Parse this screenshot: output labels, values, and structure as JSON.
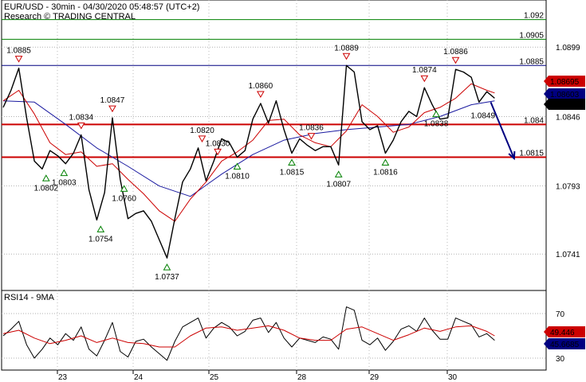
{
  "header": {
    "line1": "EUR/USD - 30min - 04/30/2020 05:48:57 (UTC+2)",
    "line2": "Research © TRADING CENTRAL"
  },
  "colors": {
    "price": "#000000",
    "ma_fast": "#cc0000",
    "ma_slow": "#1a1aa0",
    "resistance_green": "#008000",
    "pivot_blue": "#000080",
    "support_red": "#cc0000",
    "arrow": "#000080",
    "triangle_up": "#008000",
    "triangle_down": "#cc0000"
  },
  "chart_data": [
    {
      "type": "line",
      "panel": "price",
      "y_ticks": [
        "1.0899",
        "1.0846",
        "1.0793",
        "1.0741"
      ],
      "x_ticks": [
        "23",
        "24",
        "25",
        "28",
        "29",
        "30"
      ],
      "levels": [
        {
          "value": 1.092,
          "label": "1.092",
          "color": "green"
        },
        {
          "value": 1.0905,
          "label": "1.0905",
          "color": "green"
        },
        {
          "value": 1.0885,
          "label": "1.0885",
          "color": "blue"
        },
        {
          "value": 1.084,
          "label": "1.084",
          "color": "red"
        },
        {
          "value": 1.0815,
          "label": "1.0815",
          "color": "red"
        }
      ],
      "last_values": [
        {
          "label": "1.08695",
          "color": "red"
        },
        {
          "label": "1.08603",
          "color": "blue"
        },
        {
          "label": "1.086",
          "color": "black"
        }
      ],
      "highs": [
        {
          "t": 2,
          "label": "1.0885"
        },
        {
          "t": 10,
          "label": "1.0834"
        },
        {
          "t": 14,
          "label": "1.0847"
        },
        {
          "t": 25.5,
          "label": "1.0820"
        },
        {
          "t": 27.5,
          "label": "1.0830"
        },
        {
          "t": 33,
          "label": "1.0860"
        },
        {
          "t": 39.5,
          "label": "1.0836"
        },
        {
          "t": 44,
          "label": "1.0889"
        },
        {
          "t": 54,
          "label": "1.0874"
        },
        {
          "t": 58,
          "label": "1.0886"
        }
      ],
      "lows": [
        {
          "t": 5.5,
          "label": "1.0802"
        },
        {
          "t": 7.8,
          "label": "1.0803"
        },
        {
          "t": 12.5,
          "label": "1.0754"
        },
        {
          "t": 15.5,
          "label": "1.0760"
        },
        {
          "t": 21,
          "label": "1.0737"
        },
        {
          "t": 30,
          "label": "1.0810"
        },
        {
          "t": 37,
          "label": "1.0815"
        },
        {
          "t": 43,
          "label": "1.0807"
        },
        {
          "t": 49,
          "label": "1.0816"
        },
        {
          "t": 55.5,
          "label": "1.0838"
        }
      ],
      "last_label": {
        "t": 61.5,
        "label": "1.0849"
      },
      "price": [
        [
          0,
          1.0853
        ],
        [
          1,
          1.0866
        ],
        [
          2,
          1.0883
        ],
        [
          3,
          1.0845
        ],
        [
          4,
          1.0812
        ],
        [
          5,
          1.0806
        ],
        [
          6,
          1.082
        ],
        [
          7,
          1.0816
        ],
        [
          8,
          1.081
        ],
        [
          9,
          1.0818
        ],
        [
          10,
          1.0832
        ],
        [
          11,
          1.079
        ],
        [
          12,
          1.0767
        ],
        [
          13,
          1.0788
        ],
        [
          14,
          1.0845
        ],
        [
          15,
          1.0798
        ],
        [
          16,
          1.0768
        ],
        [
          17,
          1.0772
        ],
        [
          18,
          1.0774
        ],
        [
          19,
          1.0766
        ],
        [
          20,
          1.0752
        ],
        [
          21,
          1.0738
        ],
        [
          22,
          1.0768
        ],
        [
          23,
          1.0796
        ],
        [
          24,
          1.0806
        ],
        [
          25,
          1.0822
        ],
        [
          26,
          1.0797
        ],
        [
          27,
          1.0812
        ],
        [
          28,
          1.0829
        ],
        [
          29,
          1.0826
        ],
        [
          30,
          1.0815
        ],
        [
          31,
          1.082
        ],
        [
          32,
          1.0844
        ],
        [
          33,
          1.0856
        ],
        [
          34,
          1.0841
        ],
        [
          35,
          1.0858
        ],
        [
          36,
          1.0836
        ],
        [
          37,
          1.0818
        ],
        [
          38,
          1.0829
        ],
        [
          39,
          1.0824
        ],
        [
          40,
          1.082
        ],
        [
          41,
          1.0823
        ],
        [
          42,
          1.0823
        ],
        [
          43,
          1.0809
        ],
        [
          44,
          1.0885
        ],
        [
          45,
          1.088
        ],
        [
          46,
          1.0842
        ],
        [
          47,
          1.0836
        ],
        [
          48,
          1.0839
        ],
        [
          49,
          1.0818
        ],
        [
          50,
          1.0828
        ],
        [
          51,
          1.0842
        ],
        [
          52,
          1.085
        ],
        [
          53,
          1.0846
        ],
        [
          54,
          1.0868
        ],
        [
          55,
          1.0855
        ],
        [
          56,
          1.0844
        ],
        [
          57,
          1.0845
        ],
        [
          58,
          1.0882
        ],
        [
          59,
          1.088
        ],
        [
          60,
          1.0876
        ],
        [
          61,
          1.0857
        ],
        [
          62,
          1.0865
        ],
        [
          63,
          1.086
        ]
      ],
      "ma_fast": [
        [
          0,
          1.0858
        ],
        [
          2,
          1.0866
        ],
        [
          4,
          1.0848
        ],
        [
          6,
          1.0826
        ],
        [
          8,
          1.0817
        ],
        [
          10,
          1.0819
        ],
        [
          12,
          1.0808
        ],
        [
          14,
          1.081
        ],
        [
          16,
          1.0798
        ],
        [
          18,
          1.0787
        ],
        [
          20,
          1.0774
        ],
        [
          22,
          1.0766
        ],
        [
          24,
          1.0783
        ],
        [
          26,
          1.0796
        ],
        [
          28,
          1.0812
        ],
        [
          30,
          1.0819
        ],
        [
          32,
          1.0828
        ],
        [
          34,
          1.0843
        ],
        [
          36,
          1.0844
        ],
        [
          38,
          1.0832
        ],
        [
          40,
          1.0826
        ],
        [
          42,
          1.0823
        ],
        [
          44,
          1.0835
        ],
        [
          46,
          1.0855
        ],
        [
          48,
          1.0846
        ],
        [
          50,
          1.0834
        ],
        [
          52,
          1.0838
        ],
        [
          54,
          1.0849
        ],
        [
          56,
          1.0853
        ],
        [
          58,
          1.086
        ],
        [
          60,
          1.0871
        ],
        [
          62,
          1.0866
        ],
        [
          63,
          1.0864
        ]
      ],
      "ma_slow": [
        [
          0,
          1.0858
        ],
        [
          4,
          1.0857
        ],
        [
          8,
          1.084
        ],
        [
          12,
          1.0822
        ],
        [
          16,
          1.0808
        ],
        [
          20,
          1.0793
        ],
        [
          24,
          1.0785
        ],
        [
          28,
          1.0802
        ],
        [
          32,
          1.0817
        ],
        [
          36,
          1.0828
        ],
        [
          40,
          1.0833
        ],
        [
          44,
          1.0836
        ],
        [
          48,
          1.0838
        ],
        [
          52,
          1.084
        ],
        [
          56,
          1.0846
        ],
        [
          60,
          1.0855
        ],
        [
          63,
          1.0858
        ]
      ],
      "projection": [
        [
          62.5,
          1.0857
        ],
        [
          65.5,
          1.0814
        ]
      ]
    },
    {
      "type": "line",
      "panel": "rsi",
      "title": "RSI14 - 9MA",
      "y_ticks": [
        "70",
        "30"
      ],
      "last_values": [
        {
          "label": "49.446",
          "color": "red"
        },
        {
          "label": "45.6685",
          "color": "blue"
        }
      ],
      "rsi": [
        [
          0,
          50
        ],
        [
          1,
          56
        ],
        [
          2,
          63
        ],
        [
          3,
          42
        ],
        [
          4,
          30
        ],
        [
          5,
          38
        ],
        [
          6,
          48
        ],
        [
          7,
          42
        ],
        [
          8,
          52
        ],
        [
          9,
          46
        ],
        [
          10,
          58
        ],
        [
          11,
          38
        ],
        [
          12,
          32
        ],
        [
          13,
          46
        ],
        [
          14,
          62
        ],
        [
          15,
          36
        ],
        [
          16,
          31
        ],
        [
          17,
          45
        ],
        [
          18,
          47
        ],
        [
          19,
          40
        ],
        [
          20,
          34
        ],
        [
          21,
          28
        ],
        [
          22,
          45
        ],
        [
          23,
          58
        ],
        [
          24,
          62
        ],
        [
          25,
          66
        ],
        [
          26,
          48
        ],
        [
          27,
          57
        ],
        [
          28,
          62
        ],
        [
          29,
          58
        ],
        [
          30,
          50
        ],
        [
          31,
          54
        ],
        [
          32,
          64
        ],
        [
          33,
          66
        ],
        [
          34,
          53
        ],
        [
          35,
          62
        ],
        [
          36,
          48
        ],
        [
          37,
          40
        ],
        [
          38,
          48
        ],
        [
          39,
          46
        ],
        [
          40,
          44
        ],
        [
          41,
          49
        ],
        [
          42,
          47
        ],
        [
          43,
          38
        ],
        [
          44,
          76
        ],
        [
          45,
          73
        ],
        [
          46,
          46
        ],
        [
          47,
          42
        ],
        [
          48,
          48
        ],
        [
          49,
          37
        ],
        [
          50,
          45
        ],
        [
          51,
          56
        ],
        [
          52,
          59
        ],
        [
          53,
          54
        ],
        [
          54,
          66
        ],
        [
          55,
          55
        ],
        [
          56,
          47
        ],
        [
          57,
          47
        ],
        [
          58,
          66
        ],
        [
          59,
          63
        ],
        [
          60,
          60
        ],
        [
          61,
          49
        ],
        [
          62,
          52
        ],
        [
          63,
          46
        ]
      ],
      "rsi_ma": [
        [
          0,
          52
        ],
        [
          2,
          55
        ],
        [
          4,
          48
        ],
        [
          6,
          43
        ],
        [
          8,
          46
        ],
        [
          10,
          50
        ],
        [
          12,
          44
        ],
        [
          14,
          48
        ],
        [
          16,
          44
        ],
        [
          18,
          43
        ],
        [
          20,
          40
        ],
        [
          22,
          40
        ],
        [
          24,
          50
        ],
        [
          26,
          57
        ],
        [
          28,
          58
        ],
        [
          30,
          55
        ],
        [
          32,
          57
        ],
        [
          34,
          59
        ],
        [
          36,
          55
        ],
        [
          38,
          48
        ],
        [
          40,
          46
        ],
        [
          42,
          46
        ],
        [
          44,
          56
        ],
        [
          46,
          58
        ],
        [
          48,
          52
        ],
        [
          50,
          46
        ],
        [
          52,
          51
        ],
        [
          54,
          57
        ],
        [
          56,
          54
        ],
        [
          58,
          58
        ],
        [
          60,
          59
        ],
        [
          62,
          54
        ],
        [
          63,
          50
        ]
      ]
    }
  ]
}
